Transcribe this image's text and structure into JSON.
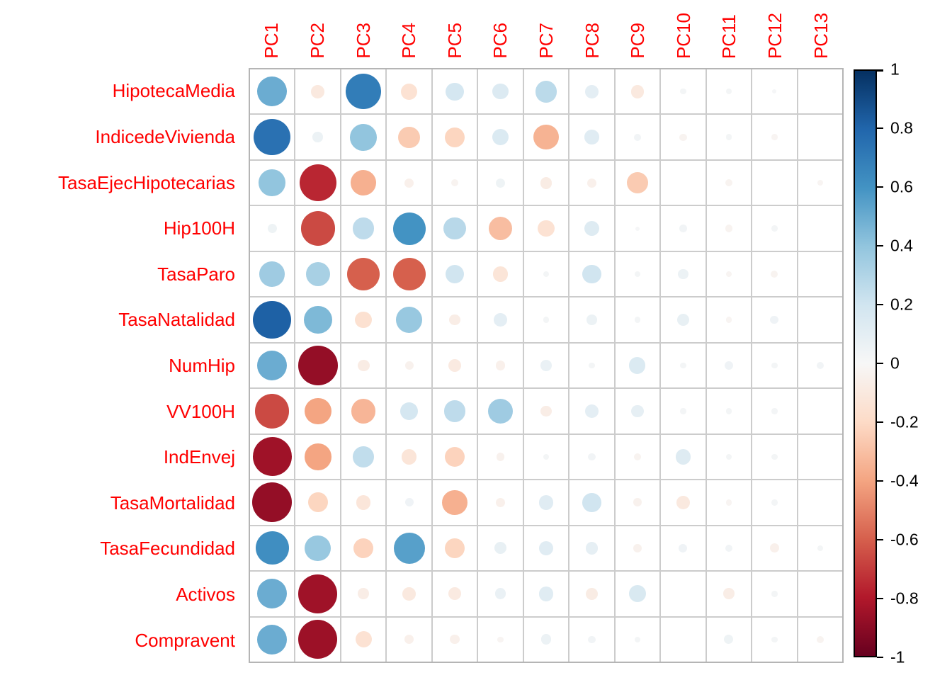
{
  "chart_data": {
    "type": "heatmap",
    "style": "corrplot-circles",
    "title": "",
    "columns": [
      "PC1",
      "PC2",
      "PC3",
      "PC4",
      "PC5",
      "PC6",
      "PC7",
      "PC8",
      "PC9",
      "PC10",
      "PC11",
      "PC12",
      "PC13"
    ],
    "rows": [
      "HipotecaMedia",
      "IndicedeVivienda",
      "TasaEjecHipotecarias",
      "Hip100H",
      "TasaParo",
      "TasaNatalidad",
      "NumHip",
      "VV100H",
      "IndEnvej",
      "TasaMortalidad",
      "TasaFecundidad",
      "Activos",
      "Compravent"
    ],
    "values": [
      [
        0.5,
        -0.1,
        0.7,
        -0.15,
        0.18,
        0.14,
        0.27,
        0.1,
        -0.1,
        0.02,
        0.02,
        0.01,
        0.0
      ],
      [
        0.75,
        0.06,
        0.4,
        -0.26,
        -0.22,
        0.15,
        -0.35,
        0.12,
        0.03,
        -0.03,
        0.02,
        -0.02,
        0.0
      ],
      [
        0.4,
        -0.76,
        -0.36,
        -0.05,
        -0.03,
        0.05,
        -0.08,
        -0.05,
        -0.26,
        0.0,
        -0.03,
        0.0,
        -0.02
      ],
      [
        0.05,
        -0.66,
        0.26,
        0.6,
        0.28,
        -0.31,
        -0.15,
        0.13,
        0.01,
        0.03,
        -0.03,
        0.02,
        0.0
      ],
      [
        0.36,
        0.33,
        -0.6,
        -0.6,
        0.2,
        -0.13,
        0.02,
        0.2,
        0.02,
        0.06,
        -0.02,
        -0.03,
        0.0
      ],
      [
        0.82,
        0.45,
        -0.16,
        0.38,
        -0.07,
        0.1,
        0.02,
        0.06,
        0.02,
        0.08,
        -0.02,
        0.04,
        0.0
      ],
      [
        0.5,
        -0.88,
        -0.08,
        -0.04,
        -0.09,
        -0.05,
        0.07,
        0.02,
        0.15,
        0.02,
        0.04,
        0.02,
        0.03
      ],
      [
        -0.66,
        -0.4,
        -0.34,
        0.18,
        0.26,
        0.36,
        -0.07,
        0.1,
        0.09,
        0.02,
        0.02,
        0.02,
        0.0
      ],
      [
        -0.85,
        -0.4,
        0.25,
        -0.13,
        -0.23,
        -0.04,
        0.02,
        0.03,
        -0.03,
        0.13,
        0.02,
        0.02,
        0.0
      ],
      [
        -0.88,
        -0.22,
        -0.12,
        0.04,
        -0.36,
        -0.05,
        0.12,
        0.2,
        -0.04,
        -0.1,
        -0.02,
        0.02,
        0.0
      ],
      [
        0.62,
        0.38,
        -0.23,
        0.55,
        -0.22,
        0.08,
        0.12,
        0.09,
        -0.04,
        0.04,
        0.03,
        -0.05,
        0.02
      ],
      [
        0.5,
        -0.85,
        -0.07,
        -0.1,
        -0.09,
        0.07,
        0.12,
        -0.08,
        0.16,
        0.0,
        -0.07,
        0.02,
        0.0
      ],
      [
        0.5,
        -0.86,
        -0.15,
        -0.05,
        -0.05,
        -0.02,
        0.06,
        0.03,
        0.02,
        0.0,
        0.05,
        0.02,
        -0.03
      ]
    ],
    "value_range": [
      -1,
      1
    ],
    "grid": true,
    "legend_position": "right",
    "colorbar": {
      "ticks": [
        "1",
        "0.8",
        "0.6",
        "0.4",
        "0.2",
        "0",
        "-0.2",
        "-0.4",
        "-0.6",
        "-0.8",
        "-1"
      ]
    },
    "palette": {
      "name": "RdBu",
      "stops": [
        "#67001F",
        "#B2182B",
        "#D6604D",
        "#F4A582",
        "#FDDBC7",
        "#F7F7F7",
        "#D1E5F0",
        "#92C5DE",
        "#4393C3",
        "#2166AC",
        "#053061"
      ]
    },
    "style_colors": {
      "axis_label_color": "#FF0000",
      "tick_label_color": "#000000",
      "grid_line_color": "#CCCCCC",
      "outer_border_color": "#B5B5B5",
      "cell_background": "#FFFFFF"
    }
  }
}
